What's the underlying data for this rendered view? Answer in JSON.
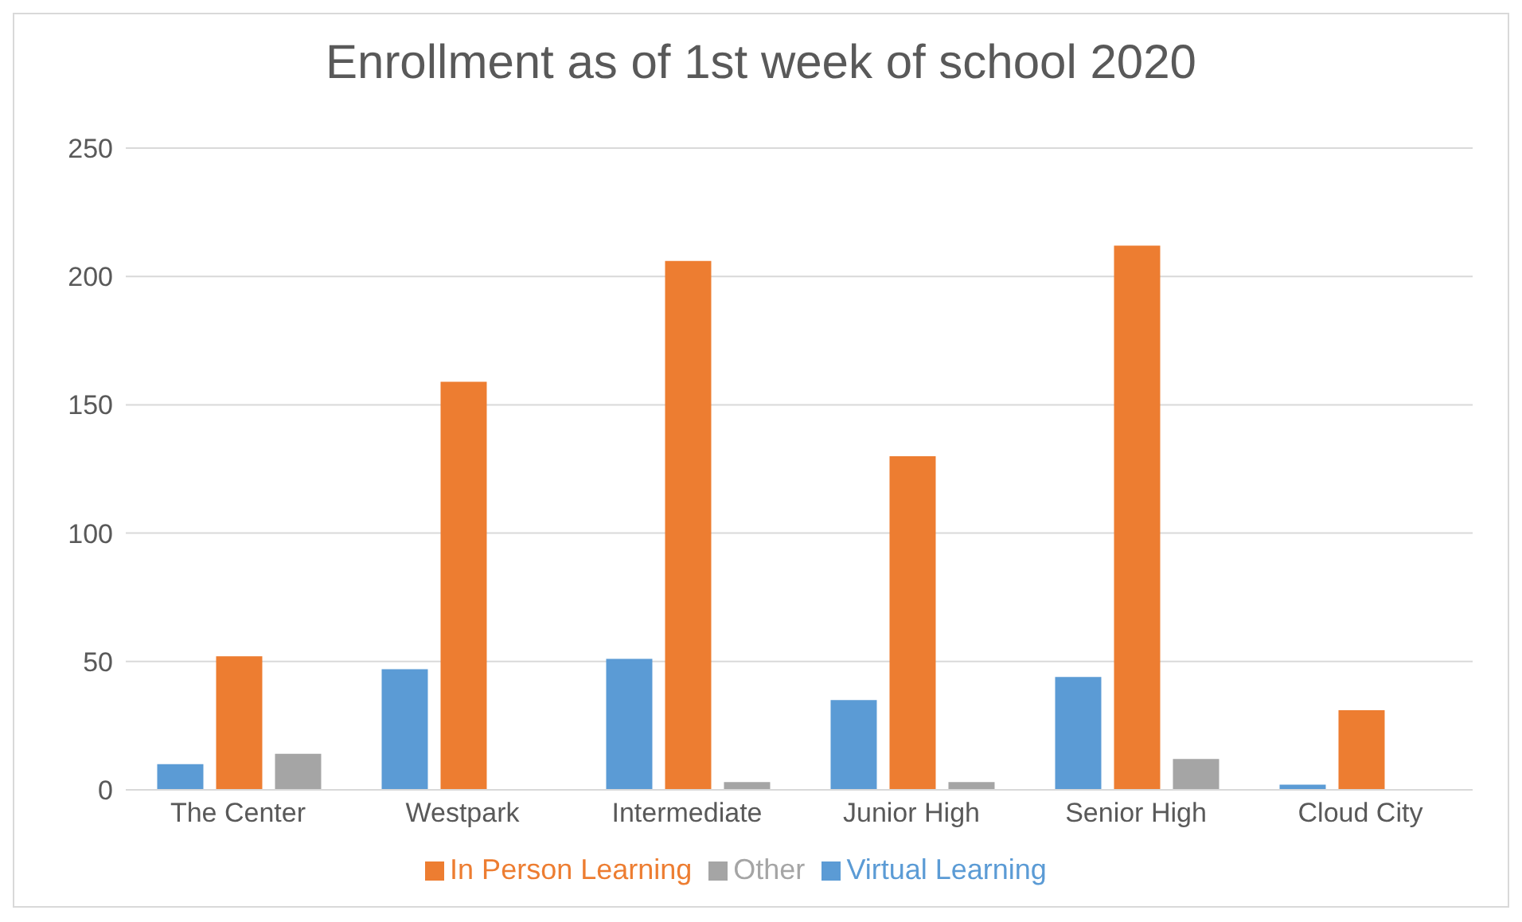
{
  "chart_data": {
    "type": "bar",
    "title": "Enrollment as of 1st week of school 2020",
    "categories": [
      "The Center",
      "Westpark",
      "Intermediate",
      "Junior High",
      "Senior High",
      "Cloud City"
    ],
    "series": [
      {
        "name": "Virtual Learning",
        "color": "#5b9bd5",
        "values": [
          10,
          47,
          51,
          35,
          44,
          2
        ]
      },
      {
        "name": "In Person Learning",
        "color": "#ed7d31",
        "values": [
          52,
          159,
          206,
          130,
          212,
          31
        ]
      },
      {
        "name": "Other",
        "color": "#a5a5a5",
        "values": [
          14,
          0,
          3,
          3,
          12,
          0
        ]
      }
    ],
    "ylim": [
      0,
      250
    ],
    "yticks": [
      0,
      50,
      100,
      150,
      200,
      250
    ],
    "grid": "y",
    "legend": "bottom"
  }
}
